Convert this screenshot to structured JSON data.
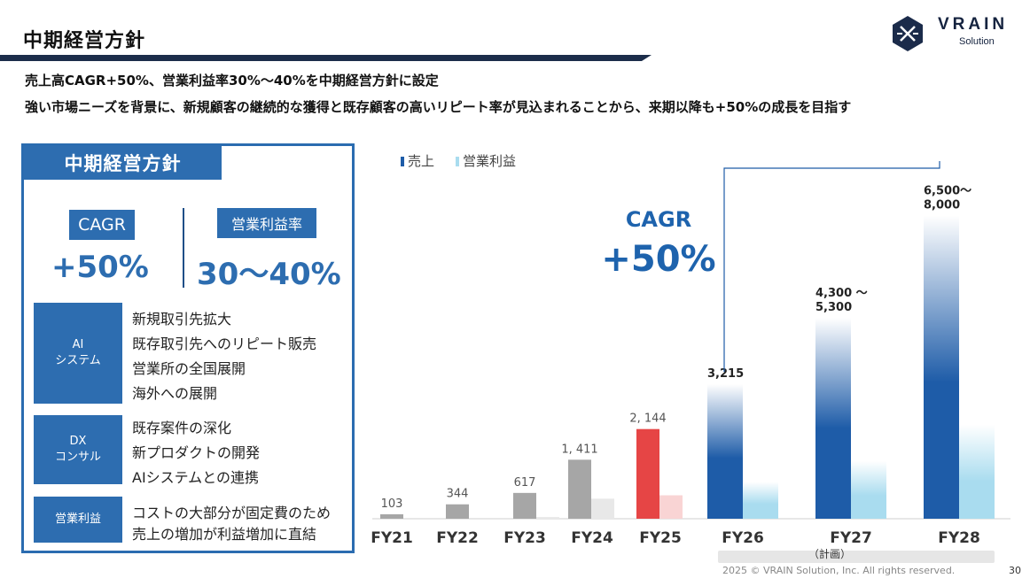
{
  "header": {
    "title": "中期経営方針",
    "logo_word": "VRAIN",
    "logo_sub": "Solution"
  },
  "subtitle": {
    "line1": "売上高CAGR+50%、営業利益率30%～40%を中期経営方針に設定",
    "line2": "強い市場ニーズを背景に、新規顧客の継続的な獲得と既存顧客の高いリピート率が見込まれることから、来期以降も+50%の成長を目指す"
  },
  "policy": {
    "tab": "中期経営方針",
    "cagr_label": "CAGR",
    "cagr_value": "+50%",
    "margin_label": "営業利益率",
    "margin_value": "30～40%",
    "categories": [
      {
        "label": "AI\nシステム",
        "items": [
          "新規取引先拡大",
          "既存取引先へのリピート販売",
          "営業所の全国展開",
          "海外への展開"
        ]
      },
      {
        "label": "DX\nコンサル",
        "items": [
          "既存案件の深化",
          "新プロダクトの開発",
          "AIシステムとの連携"
        ]
      },
      {
        "label": "営業利益",
        "items": [
          "コストの大部分が固定費のため",
          "売上の増加が利益増加に直結"
        ]
      }
    ]
  },
  "chart_data": {
    "type": "bar",
    "categories": [
      "FY21",
      "FY22",
      "FY23",
      "FY24",
      "FY25",
      "FY26",
      "FY27",
      "FY28"
    ],
    "series": [
      {
        "name": "売上",
        "values": [
          103,
          344,
          617,
          1411,
          2144,
          3215,
          4800,
          7250
        ]
      },
      {
        "name": "営業利益",
        "values": [
          null,
          null,
          40,
          480,
          560,
          880,
          1380,
          2250
        ]
      }
    ],
    "value_labels": [
      "103",
      "344",
      "617",
      "1, 411",
      "2, 144",
      "3,215",
      "4,300 ～\n5,300",
      "6,500～\n8,000"
    ],
    "plan_label": "（計画）",
    "annotation": "CAGR\n+50%",
    "legend": "top-left",
    "ylim": [
      0,
      8000
    ],
    "colors": {
      "actual_sales": "#a6a6a6",
      "actual_profit": "#e8e8e8",
      "fy25_sales": "#e64545",
      "fy25_profit": "#f9d4d4",
      "plan_sales": "#1e5ca8",
      "plan_profit": "#a9dcef",
      "cagr": "#1e63ad"
    }
  },
  "footer": {
    "copyright": "2025 © VRAIN Solution, Inc. All rights reserved.",
    "page": "30"
  }
}
